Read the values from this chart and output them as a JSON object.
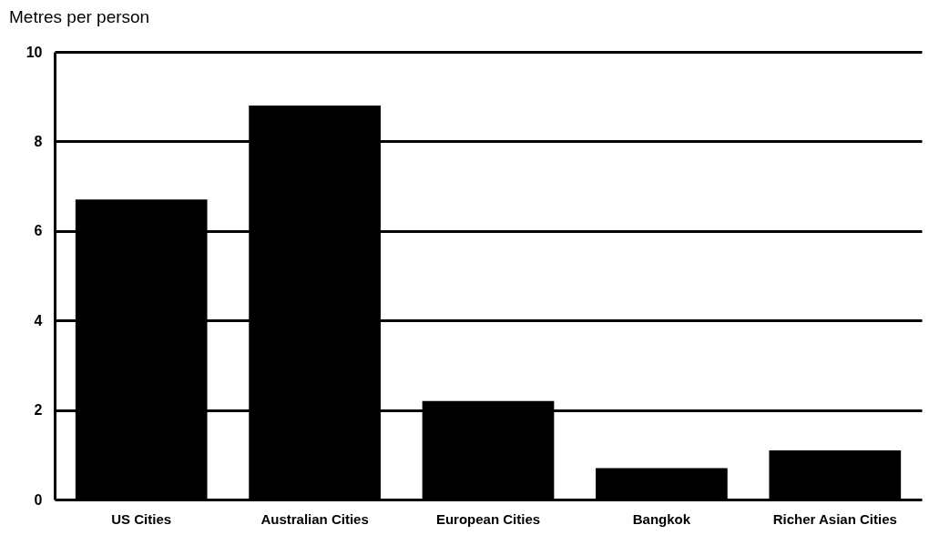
{
  "chart_data": {
    "type": "bar",
    "title": "Metres per person",
    "categories": [
      "US Cities",
      "Australian Cities",
      "European Cities",
      "Bangkok",
      "Richer Asian Cities"
    ],
    "values": [
      6.7,
      8.8,
      2.2,
      0.7,
      1.1
    ],
    "color": "#000000",
    "ylim": [
      0,
      10
    ],
    "yticks": [
      0,
      2,
      4,
      6,
      8,
      10
    ],
    "grid": "y"
  }
}
